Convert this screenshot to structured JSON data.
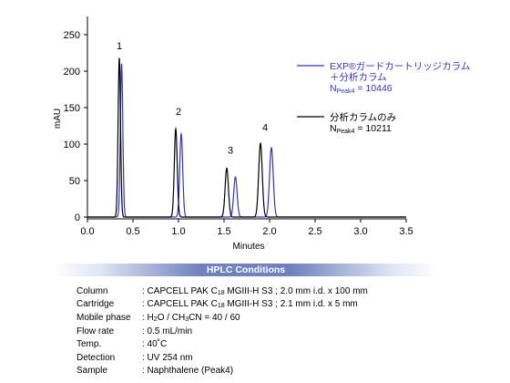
{
  "chart_data": {
    "type": "line",
    "xlabel": "Minutes",
    "ylabel": "mAU",
    "xlim": [
      0.0,
      3.5
    ],
    "ylim": [
      0,
      250
    ],
    "x_ticks": [
      "0.0",
      "0.5",
      "1.0",
      "1.5",
      "2.0",
      "2.5",
      "3.0",
      "3.5"
    ],
    "y_ticks": [
      "0",
      "50",
      "100",
      "150",
      "200",
      "250"
    ],
    "peak_labels": [
      {
        "label": "1",
        "x": 0.35,
        "y": 230
      },
      {
        "label": "2",
        "x": 1.0,
        "y": 140
      },
      {
        "label": "3",
        "x": 1.57,
        "y": 87
      },
      {
        "label": "4",
        "x": 1.95,
        "y": 118
      }
    ],
    "series": [
      {
        "color": "#3333cc",
        "legend_lines": [
          "EXP®ガードカートリッジカラム",
          "＋分析カラム"
        ],
        "n_prefix": "N",
        "n_sub": "Peak4",
        "n_value": " = 10446",
        "peaks": [
          {
            "t": 0.375,
            "h": 210
          },
          {
            "t": 1.03,
            "h": 114
          },
          {
            "t": 1.625,
            "h": 55
          },
          {
            "t": 2.02,
            "h": 95
          }
        ]
      },
      {
        "color": "#000000",
        "legend_lines": [
          "分析カラムのみ"
        ],
        "n_prefix": "N",
        "n_sub": "Peak4",
        "n_value": " = 10211",
        "peaks": [
          {
            "t": 0.35,
            "h": 218
          },
          {
            "t": 0.97,
            "h": 121
          },
          {
            "t": 1.53,
            "h": 67
          },
          {
            "t": 1.9,
            "h": 101
          }
        ]
      }
    ]
  },
  "conditions": {
    "title": "HPLC Conditions",
    "rows": [
      {
        "key": "Column",
        "pre": ": CAPCELL PAK C",
        "sub": "18",
        "post": " MGIII-H S3 ; 2.0 mm i.d. x 100 mm"
      },
      {
        "key": "Cartridge",
        "pre": ": CAPCELL PAK C",
        "sub": "18",
        "post": " MGIII-H S3 ; 2.1 mm i.d. x 5 mm"
      },
      {
        "key": "Mobile phase",
        "pre": ": H",
        "sub": "2",
        "post": "O / CH",
        "sub2": "3",
        "post2": "CN = 40 / 60"
      },
      {
        "key": "Flow rate",
        "pre": ": 0.5 mL/min"
      },
      {
        "key": "Temp.",
        "pre": ": 40˚C"
      },
      {
        "key": "Detection",
        "pre": ": UV 254 nm"
      },
      {
        "key": "Sample",
        "pre": ": Naphthalene (Peak4)"
      }
    ]
  }
}
